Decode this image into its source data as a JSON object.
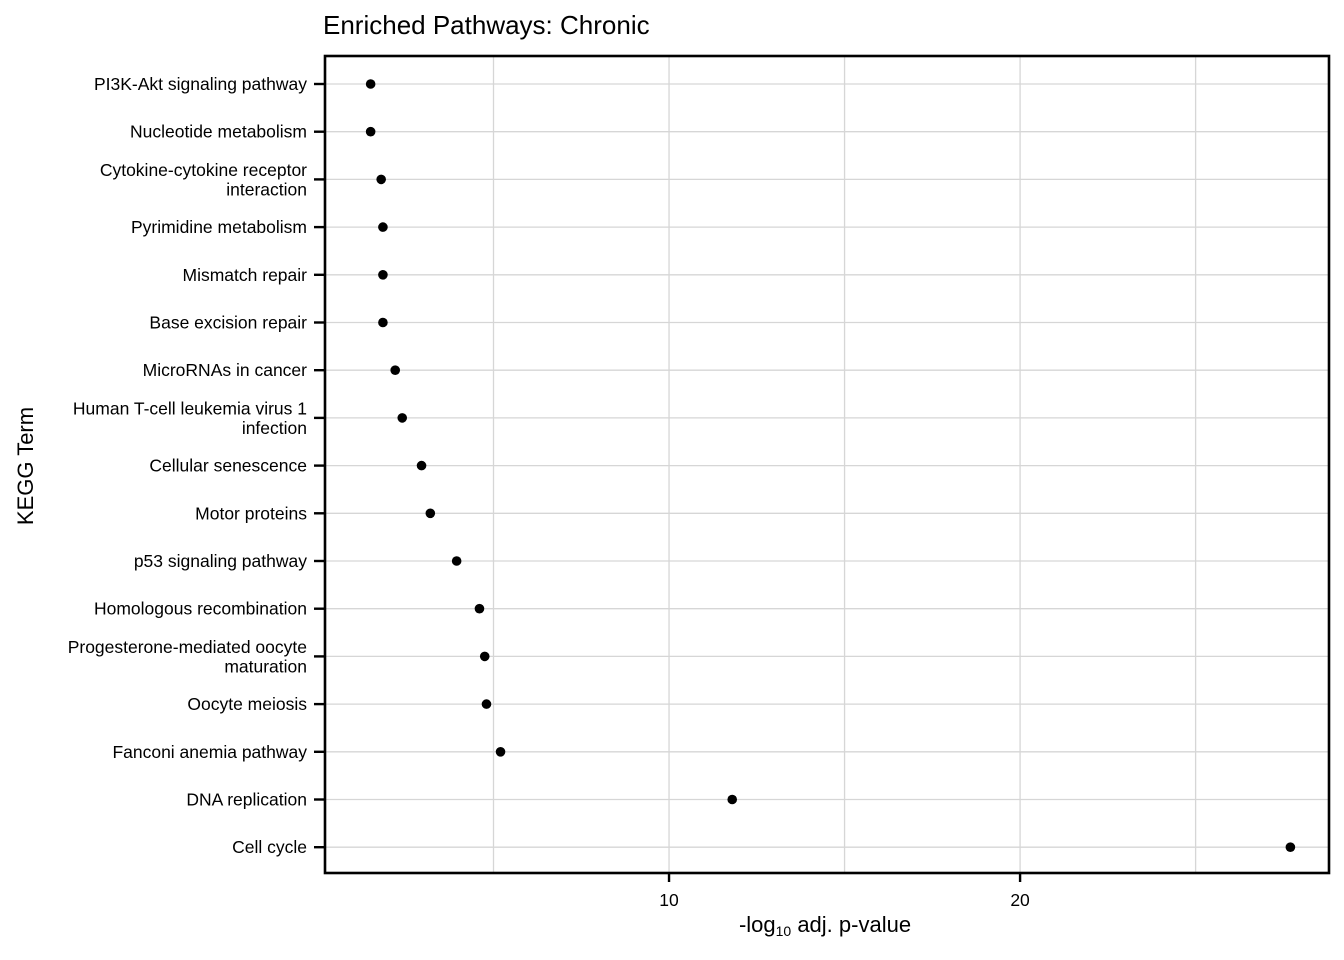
{
  "chart_data": {
    "type": "scatter",
    "title": "Enriched Pathways: Chronic",
    "xlabel": {
      "prefix": "-log",
      "subscript": "10",
      "suffix": " adj. p-value"
    },
    "ylabel": "KEGG Term",
    "xlim": [
      0.2,
      28.8
    ],
    "x_ticks": [
      10,
      20
    ],
    "x_minor_gridlines": [
      5,
      15,
      25
    ],
    "grid": true,
    "categories": [
      [
        "PI3K-Akt signaling pathway"
      ],
      [
        "Nucleotide metabolism"
      ],
      [
        "Cytokine-cytokine receptor",
        "interaction"
      ],
      [
        "Pyrimidine metabolism"
      ],
      [
        "Mismatch repair"
      ],
      [
        "Base excision repair"
      ],
      [
        "MicroRNAs in cancer"
      ],
      [
        "Human T-cell leukemia virus 1",
        "infection"
      ],
      [
        "Cellular senescence"
      ],
      [
        "Motor proteins"
      ],
      [
        "p53 signaling pathway"
      ],
      [
        "Homologous recombination"
      ],
      [
        "Progesterone-mediated oocyte",
        "maturation"
      ],
      [
        "Oocyte meiosis"
      ],
      [
        "Fanconi anemia pathway"
      ],
      [
        "DNA replication"
      ],
      [
        "Cell cycle"
      ]
    ],
    "values": [
      1.5,
      1.5,
      1.8,
      1.85,
      1.85,
      1.85,
      2.2,
      2.4,
      2.95,
      3.2,
      3.95,
      4.6,
      4.75,
      4.8,
      5.2,
      11.8,
      27.7
    ],
    "point_color": "#000000"
  }
}
